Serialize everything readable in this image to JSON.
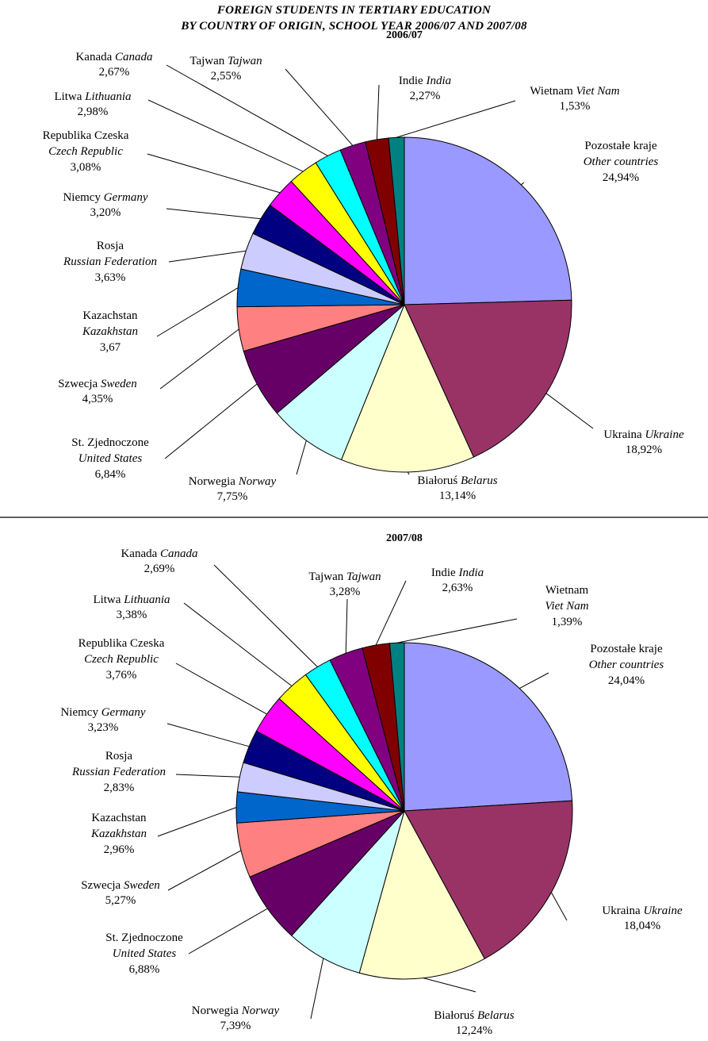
{
  "title_line1": "FOREIGN STUDENTS IN TERTIARY EDUCATION",
  "title_line2": "BY COUNTRY OF ORIGIN, SCHOOL YEAR 2006/07 AND 2007/08",
  "chart_data": [
    {
      "type": "pie",
      "title": "2006/07",
      "slices": [
        {
          "pl": "Pozostałe kraje",
          "en": "Other countries",
          "value": 24.94,
          "pct": "24,94%",
          "color": "#9999ff"
        },
        {
          "pl": "Ukraina",
          "en": "Ukraine",
          "value": 18.92,
          "pct": "18,92%",
          "color": "#993366"
        },
        {
          "pl": "Białoruś",
          "en": "Belarus",
          "value": 13.14,
          "pct": "13,14%",
          "color": "#ffffcc"
        },
        {
          "pl": "Norwegia",
          "en": "Norway",
          "value": 7.75,
          "pct": "7,75%",
          "color": "#ccffff"
        },
        {
          "pl": "St. Zjednoczone",
          "en": "United States",
          "value": 6.84,
          "pct": "6,84%",
          "color": "#660066"
        },
        {
          "pl": "Szwecja",
          "en": "Sweden",
          "value": 4.35,
          "pct": "4,35%",
          "color": "#ff8080"
        },
        {
          "pl": "Kazachstan",
          "en": "Kazakhstan",
          "value": 3.67,
          "pct": "3,67",
          "color": "#0066cc"
        },
        {
          "pl": "Rosja",
          "en": "Russian Federation",
          "value": 3.63,
          "pct": "3,63%",
          "color": "#ccccff"
        },
        {
          "pl": "Niemcy",
          "en": "Germany",
          "value": 3.2,
          "pct": "3,20%",
          "color": "#000080"
        },
        {
          "pl": "Republika Czeska",
          "en": "Czech Republic",
          "value": 3.08,
          "pct": "3,08%",
          "color": "#ff00ff"
        },
        {
          "pl": "Litwa",
          "en": "Lithuania",
          "value": 2.98,
          "pct": "2,98%",
          "color": "#ffff00"
        },
        {
          "pl": "Kanada",
          "en": "Canada",
          "value": 2.67,
          "pct": "2,67%",
          "color": "#00ffff"
        },
        {
          "pl": "Tajwan",
          "en": "Tajwan",
          "value": 2.55,
          "pct": "2,55%",
          "color": "#800080"
        },
        {
          "pl": "Indie",
          "en": "India",
          "value": 2.27,
          "pct": "2,27%",
          "color": "#800000"
        },
        {
          "pl": "Wietnam",
          "en": "Viet Nam",
          "value": 1.53,
          "pct": "1,53%",
          "color": "#008080"
        }
      ]
    },
    {
      "type": "pie",
      "title": "2007/08",
      "slices": [
        {
          "pl": "Pozostałe kraje",
          "en": "Other countries",
          "value": 24.04,
          "pct": "24,04%",
          "color": "#9999ff"
        },
        {
          "pl": "Ukraina",
          "en": "Ukraine",
          "value": 18.04,
          "pct": "18,04%",
          "color": "#993366"
        },
        {
          "pl": "Białoruś",
          "en": "Belarus",
          "value": 12.24,
          "pct": "12,24%",
          "color": "#ffffcc"
        },
        {
          "pl": "Norwegia",
          "en": "Norway",
          "value": 7.39,
          "pct": "7,39%",
          "color": "#ccffff"
        },
        {
          "pl": "St. Zjednoczone",
          "en": "United States",
          "value": 6.88,
          "pct": "6,88%",
          "color": "#660066"
        },
        {
          "pl": "Szwecja",
          "en": "Sweden",
          "value": 5.27,
          "pct": "5,27%",
          "color": "#ff8080"
        },
        {
          "pl": "Kazachstan",
          "en": "Kazakhstan",
          "value": 2.96,
          "pct": "2,96%",
          "color": "#0066cc"
        },
        {
          "pl": "Rosja",
          "en": "Russian Federation",
          "value": 2.83,
          "pct": "2,83%",
          "color": "#ccccff"
        },
        {
          "pl": "Niemcy",
          "en": "Germany",
          "value": 3.23,
          "pct": "3,23%",
          "color": "#000080"
        },
        {
          "pl": "Republika Czeska",
          "en": "Czech Republic",
          "value": 3.76,
          "pct": "3,76%",
          "color": "#ff00ff"
        },
        {
          "pl": "Litwa",
          "en": "Lithuania",
          "value": 3.38,
          "pct": "3,38%",
          "color": "#ffff00"
        },
        {
          "pl": "Kanada",
          "en": "Canada",
          "value": 2.69,
          "pct": "2,69%",
          "color": "#00ffff"
        },
        {
          "pl": "Tajwan",
          "en": "Tajwan",
          "value": 3.28,
          "pct": "3,28%",
          "color": "#800080"
        },
        {
          "pl": "Indie",
          "en": "India",
          "value": 2.63,
          "pct": "2,63%",
          "color": "#800000"
        },
        {
          "pl": "Wietnam",
          "en": "Viet Nam",
          "value": 1.39,
          "pct": "1,39%",
          "color": "#008080"
        }
      ]
    }
  ]
}
